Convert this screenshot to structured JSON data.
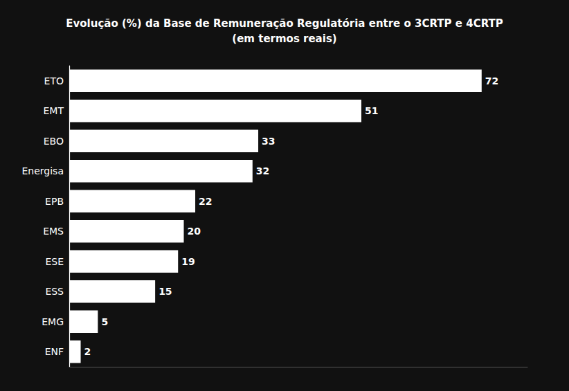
{
  "chart_data": {
    "type": "bar",
    "orientation": "horizontal",
    "title": "Evolução (%) da Base de Remuneração Regulatória entre o 3CRTP e 4CRTP\n(em termos reais)",
    "categories": [
      "ENF",
      "EMG",
      "ESS",
      "ESE",
      "EMS",
      "EPB",
      "Energisa",
      "EBO",
      "EMT",
      "ETO"
    ],
    "values": [
      2,
      5,
      15,
      19,
      20,
      22,
      32,
      33,
      51,
      72
    ],
    "color": "#ffffff",
    "xlim": [
      0,
      80
    ],
    "grid": false,
    "data_labels": true,
    "tick_labels": "y"
  }
}
